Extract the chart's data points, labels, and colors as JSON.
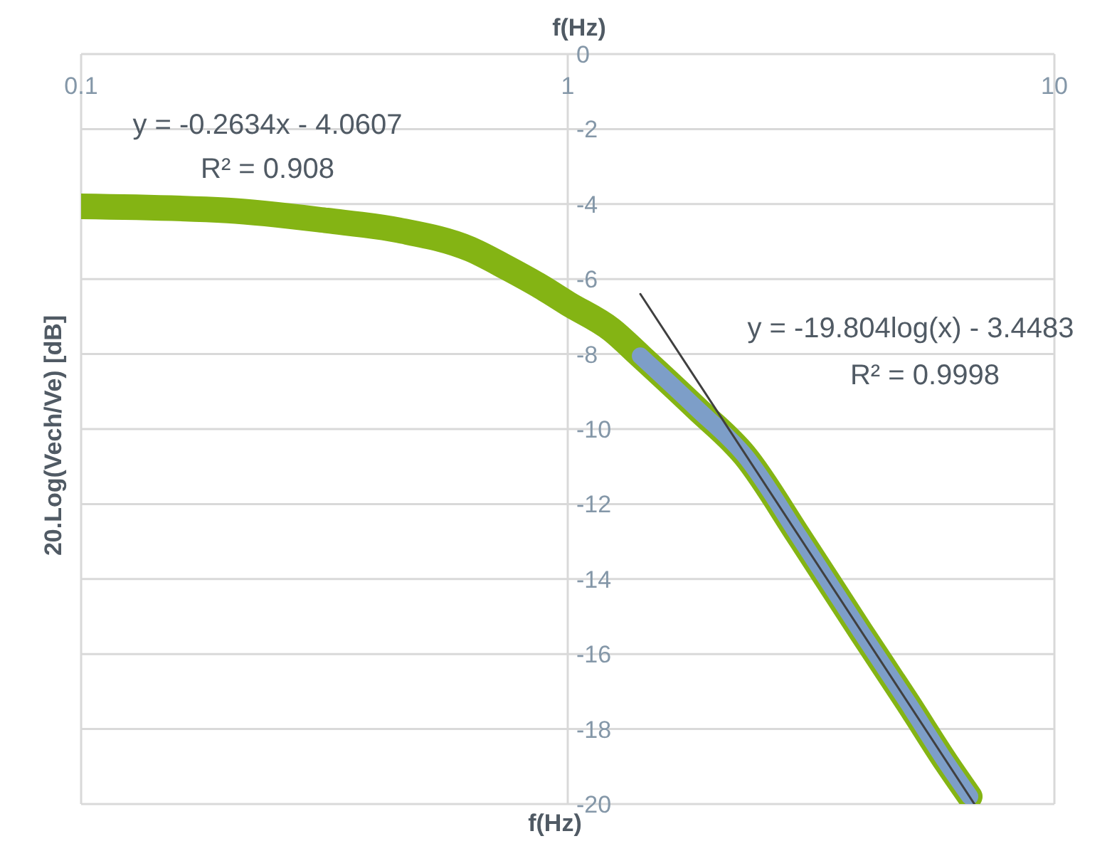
{
  "chart_data": {
    "type": "line",
    "xlabel": "f(Hz)",
    "ylabel": "20.Log(Vech/Ve) [dB]",
    "log": "x",
    "xlim": [
      0.1,
      10
    ],
    "xticks": [
      0.1,
      1,
      10
    ],
    "ylim": [
      -20,
      0
    ],
    "yticks": [
      0,
      -2,
      -4,
      -6,
      -8,
      -10,
      -12,
      -14,
      -16,
      -18,
      -20
    ],
    "grid": true,
    "marker": "none",
    "line_style": "solid",
    "series": [
      {
        "color": "#84b414",
        "x": [
          0.1,
          0.2,
          0.32,
          0.45,
          0.63,
          0.75,
          0.88,
          1.0,
          1.23,
          1.41,
          1.84,
          2.31,
          3,
          4,
          5,
          6,
          6.7
        ],
        "values": [
          -4.06,
          -4.17,
          -4.44,
          -4.7,
          -5.2,
          -5.7,
          -6.2,
          -6.65,
          -7.35,
          -8.05,
          -9.45,
          -10.7,
          -12.9,
          -15.4,
          -17.3,
          -18.9,
          -19.8
        ]
      },
      {
        "color": "#7d9ec8",
        "x": [
          1.41,
          1.84,
          2.31,
          3,
          4,
          5,
          6,
          6.7
        ],
        "values": [
          -8.05,
          -9.45,
          -10.7,
          -12.9,
          -15.4,
          -17.3,
          -18.9,
          -19.8
        ]
      },
      {
        "color": "#404040",
        "x": [
          1.41,
          6.85
        ],
        "values": [
          -6.4,
          -20.0
        ]
      }
    ],
    "annotations": [
      "y = -0.2634x - 4.0607",
      "R² = 0.908",
      "y = -19.804log(x) - 3.4483",
      "R² = 0.9998"
    ]
  }
}
